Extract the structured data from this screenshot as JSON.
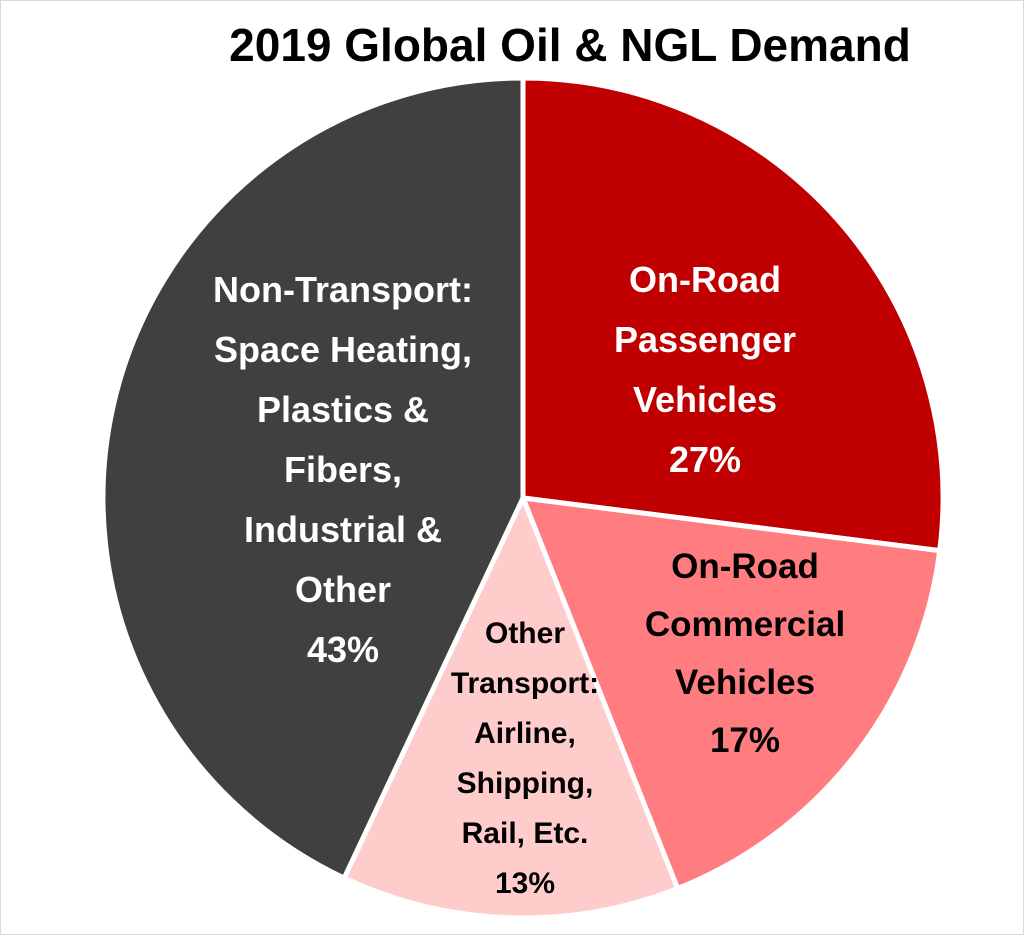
{
  "chart_data": {
    "type": "pie",
    "title": "2019 Global Oil & NGL Demand",
    "slices": [
      {
        "name": "On-Road Passenger Vehicles",
        "value": 27,
        "label_lines": [
          "On-Road",
          "Passenger",
          "Vehicles",
          "27%"
        ],
        "color": "#c00000",
        "text_color": "#ffffff"
      },
      {
        "name": "On-Road Commercial Vehicles",
        "value": 17,
        "label_lines": [
          "On-Road",
          "Commercial",
          "Vehicles",
          "17%"
        ],
        "color": "#ff7c80",
        "text_color": "#000000"
      },
      {
        "name": "Other Transport: Airline, Shipping, Rail, Etc.",
        "value": 13,
        "label_lines": [
          "Other",
          "Transport:",
          "Airline,",
          "Shipping,",
          "Rail, Etc.",
          "13%"
        ],
        "color": "#ffcccc",
        "text_color": "#000000"
      },
      {
        "name": "Non-Transport: Space Heating, Plastics & Fibers, Industrial & Other",
        "value": 43,
        "label_lines": [
          "Non-Transport:",
          "Space Heating,",
          "Plastics &",
          "Fibers,",
          "Industrial &",
          "Other",
          "43%"
        ],
        "color": "#404040",
        "text_color": "#ffffff"
      }
    ],
    "start_angle_deg": 0,
    "direction": "clockwise",
    "legend": "none",
    "slice_border_color": "#ffffff"
  }
}
